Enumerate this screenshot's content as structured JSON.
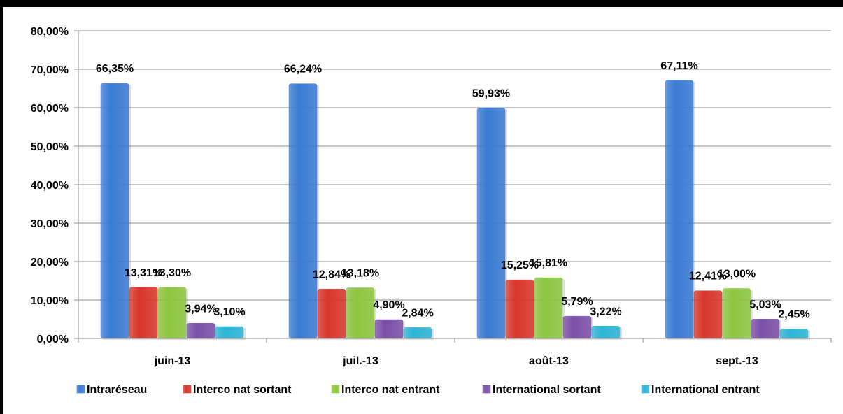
{
  "chart_data": {
    "type": "bar",
    "categories": [
      "juin-13",
      "juil.-13",
      "août-13",
      "sept.-13"
    ],
    "series": [
      {
        "name": "Intraréseau",
        "values": [
          66.35,
          66.24,
          59.93,
          67.11
        ],
        "labels": [
          "66,35%",
          "66,24%",
          "59,93%",
          "67,11%"
        ],
        "color": "#3a7bd5"
      },
      {
        "name": "Interco nat sortant",
        "values": [
          13.31,
          12.84,
          15.25,
          12.41
        ],
        "labels": [
          "13,31%",
          "12,84%",
          "15,25%",
          "12,41%"
        ],
        "color": "#d9352b"
      },
      {
        "name": "Interco nat entrant",
        "values": [
          13.3,
          13.18,
          15.81,
          13.0
        ],
        "labels": [
          "13,30%",
          "13,18%",
          "15,81%",
          "13,00%"
        ],
        "color": "#8dc63f"
      },
      {
        "name": "International sortant",
        "values": [
          3.94,
          4.9,
          5.79,
          5.03
        ],
        "labels": [
          "3,94%",
          "4,90%",
          "5,79%",
          "5,03%"
        ],
        "color": "#7b4fa8"
      },
      {
        "name": "International entrant",
        "values": [
          3.1,
          2.84,
          3.22,
          2.45
        ],
        "labels": [
          "3,10%",
          "2,84%",
          "3,22%",
          "2,45%"
        ],
        "color": "#2bb5d6"
      }
    ],
    "yticks": [
      "0,00%",
      "10,00%",
      "20,00%",
      "30,00%",
      "40,00%",
      "50,00%",
      "60,00%",
      "70,00%",
      "80,00%"
    ],
    "ylim": [
      0,
      80
    ],
    "grid": true,
    "legend_position": "bottom",
    "xlabel": "",
    "ylabel": "",
    "title": ""
  }
}
